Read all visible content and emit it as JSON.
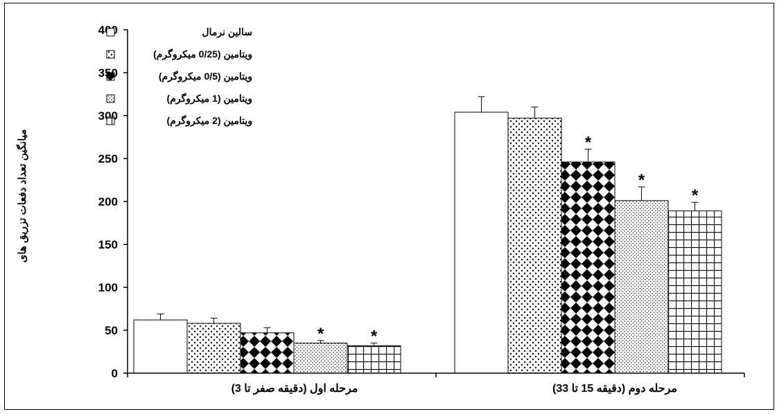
{
  "chart_data": {
    "type": "bar",
    "title": "",
    "ylabel": "میانگین تعداد دفعات تزریق های",
    "xlabel": "",
    "ylim": [
      0,
      400
    ],
    "yticks": [
      0,
      50,
      100,
      150,
      200,
      250,
      300,
      350,
      400
    ],
    "categories": [
      "مرحله اول (دقیقه صفر تا 3)",
      "مرحله دوم (دقیقه 15 تا 33)"
    ],
    "series": [
      {
        "name": "سالین نرمال",
        "values": [
          62,
          304
        ],
        "errors": [
          7,
          18
        ],
        "significant": [
          false,
          false
        ],
        "pattern": "white"
      },
      {
        "name": "ویتامین (0/25 میکروگرم)",
        "values": [
          58,
          297
        ],
        "errors": [
          6,
          13
        ],
        "significant": [
          false,
          false
        ],
        "pattern": "cross"
      },
      {
        "name": "ویتامین (0/5 میکروگرم)",
        "values": [
          47,
          246
        ],
        "errors": [
          6,
          15
        ],
        "significant": [
          false,
          true
        ],
        "pattern": "diamond"
      },
      {
        "name": "ویتامین (1 میکروگرم)",
        "values": [
          35,
          201
        ],
        "errors": [
          3,
          16
        ],
        "significant": [
          true,
          true
        ],
        "pattern": "dots"
      },
      {
        "name": "ویتامین (2 میکروگرم)",
        "values": [
          32,
          189
        ],
        "errors": [
          3,
          10
        ],
        "significant": [
          true,
          true
        ],
        "pattern": "grid"
      }
    ],
    "significance_marker": "*",
    "legend_position": "top-left",
    "grid": false
  }
}
